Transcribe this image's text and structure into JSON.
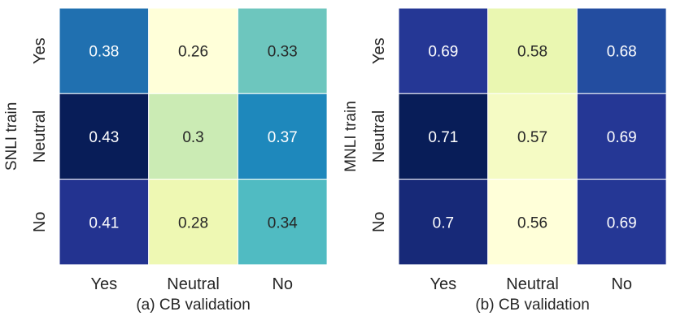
{
  "chart_data": [
    {
      "type": "heatmap",
      "title": "",
      "xlabel": "(a) CB validation",
      "ylabel": "SNLI train",
      "x_categories": [
        "Yes",
        "Neutral",
        "No"
      ],
      "y_categories": [
        "Yes",
        "Neutral",
        "No"
      ],
      "values": [
        [
          0.38,
          0.26,
          0.33
        ],
        [
          0.43,
          0.3,
          0.37
        ],
        [
          0.41,
          0.28,
          0.34
        ]
      ],
      "labels": [
        [
          "0.38",
          "0.26",
          "0.33"
        ],
        [
          "0.43",
          "0.3",
          "0.37"
        ],
        [
          "0.41",
          "0.28",
          "0.34"
        ]
      ],
      "colormap": "YlGnBu",
      "vmin": 0.26,
      "vmax": 0.43,
      "colorbar": false
    },
    {
      "type": "heatmap",
      "title": "",
      "xlabel": "(b) CB validation",
      "ylabel": "MNLI train",
      "x_categories": [
        "Yes",
        "Neutral",
        "No"
      ],
      "y_categories": [
        "Yes",
        "Neutral",
        "No"
      ],
      "values": [
        [
          0.69,
          0.58,
          0.68
        ],
        [
          0.71,
          0.57,
          0.69
        ],
        [
          0.7,
          0.56,
          0.69
        ]
      ],
      "labels": [
        [
          "0.69",
          "0.58",
          "0.68"
        ],
        [
          "0.71",
          "0.57",
          "0.69"
        ],
        [
          "0.7",
          "0.56",
          "0.69"
        ]
      ],
      "colormap": "YlGnBu",
      "vmin": 0.56,
      "vmax": 0.71,
      "colorbar": false
    }
  ]
}
